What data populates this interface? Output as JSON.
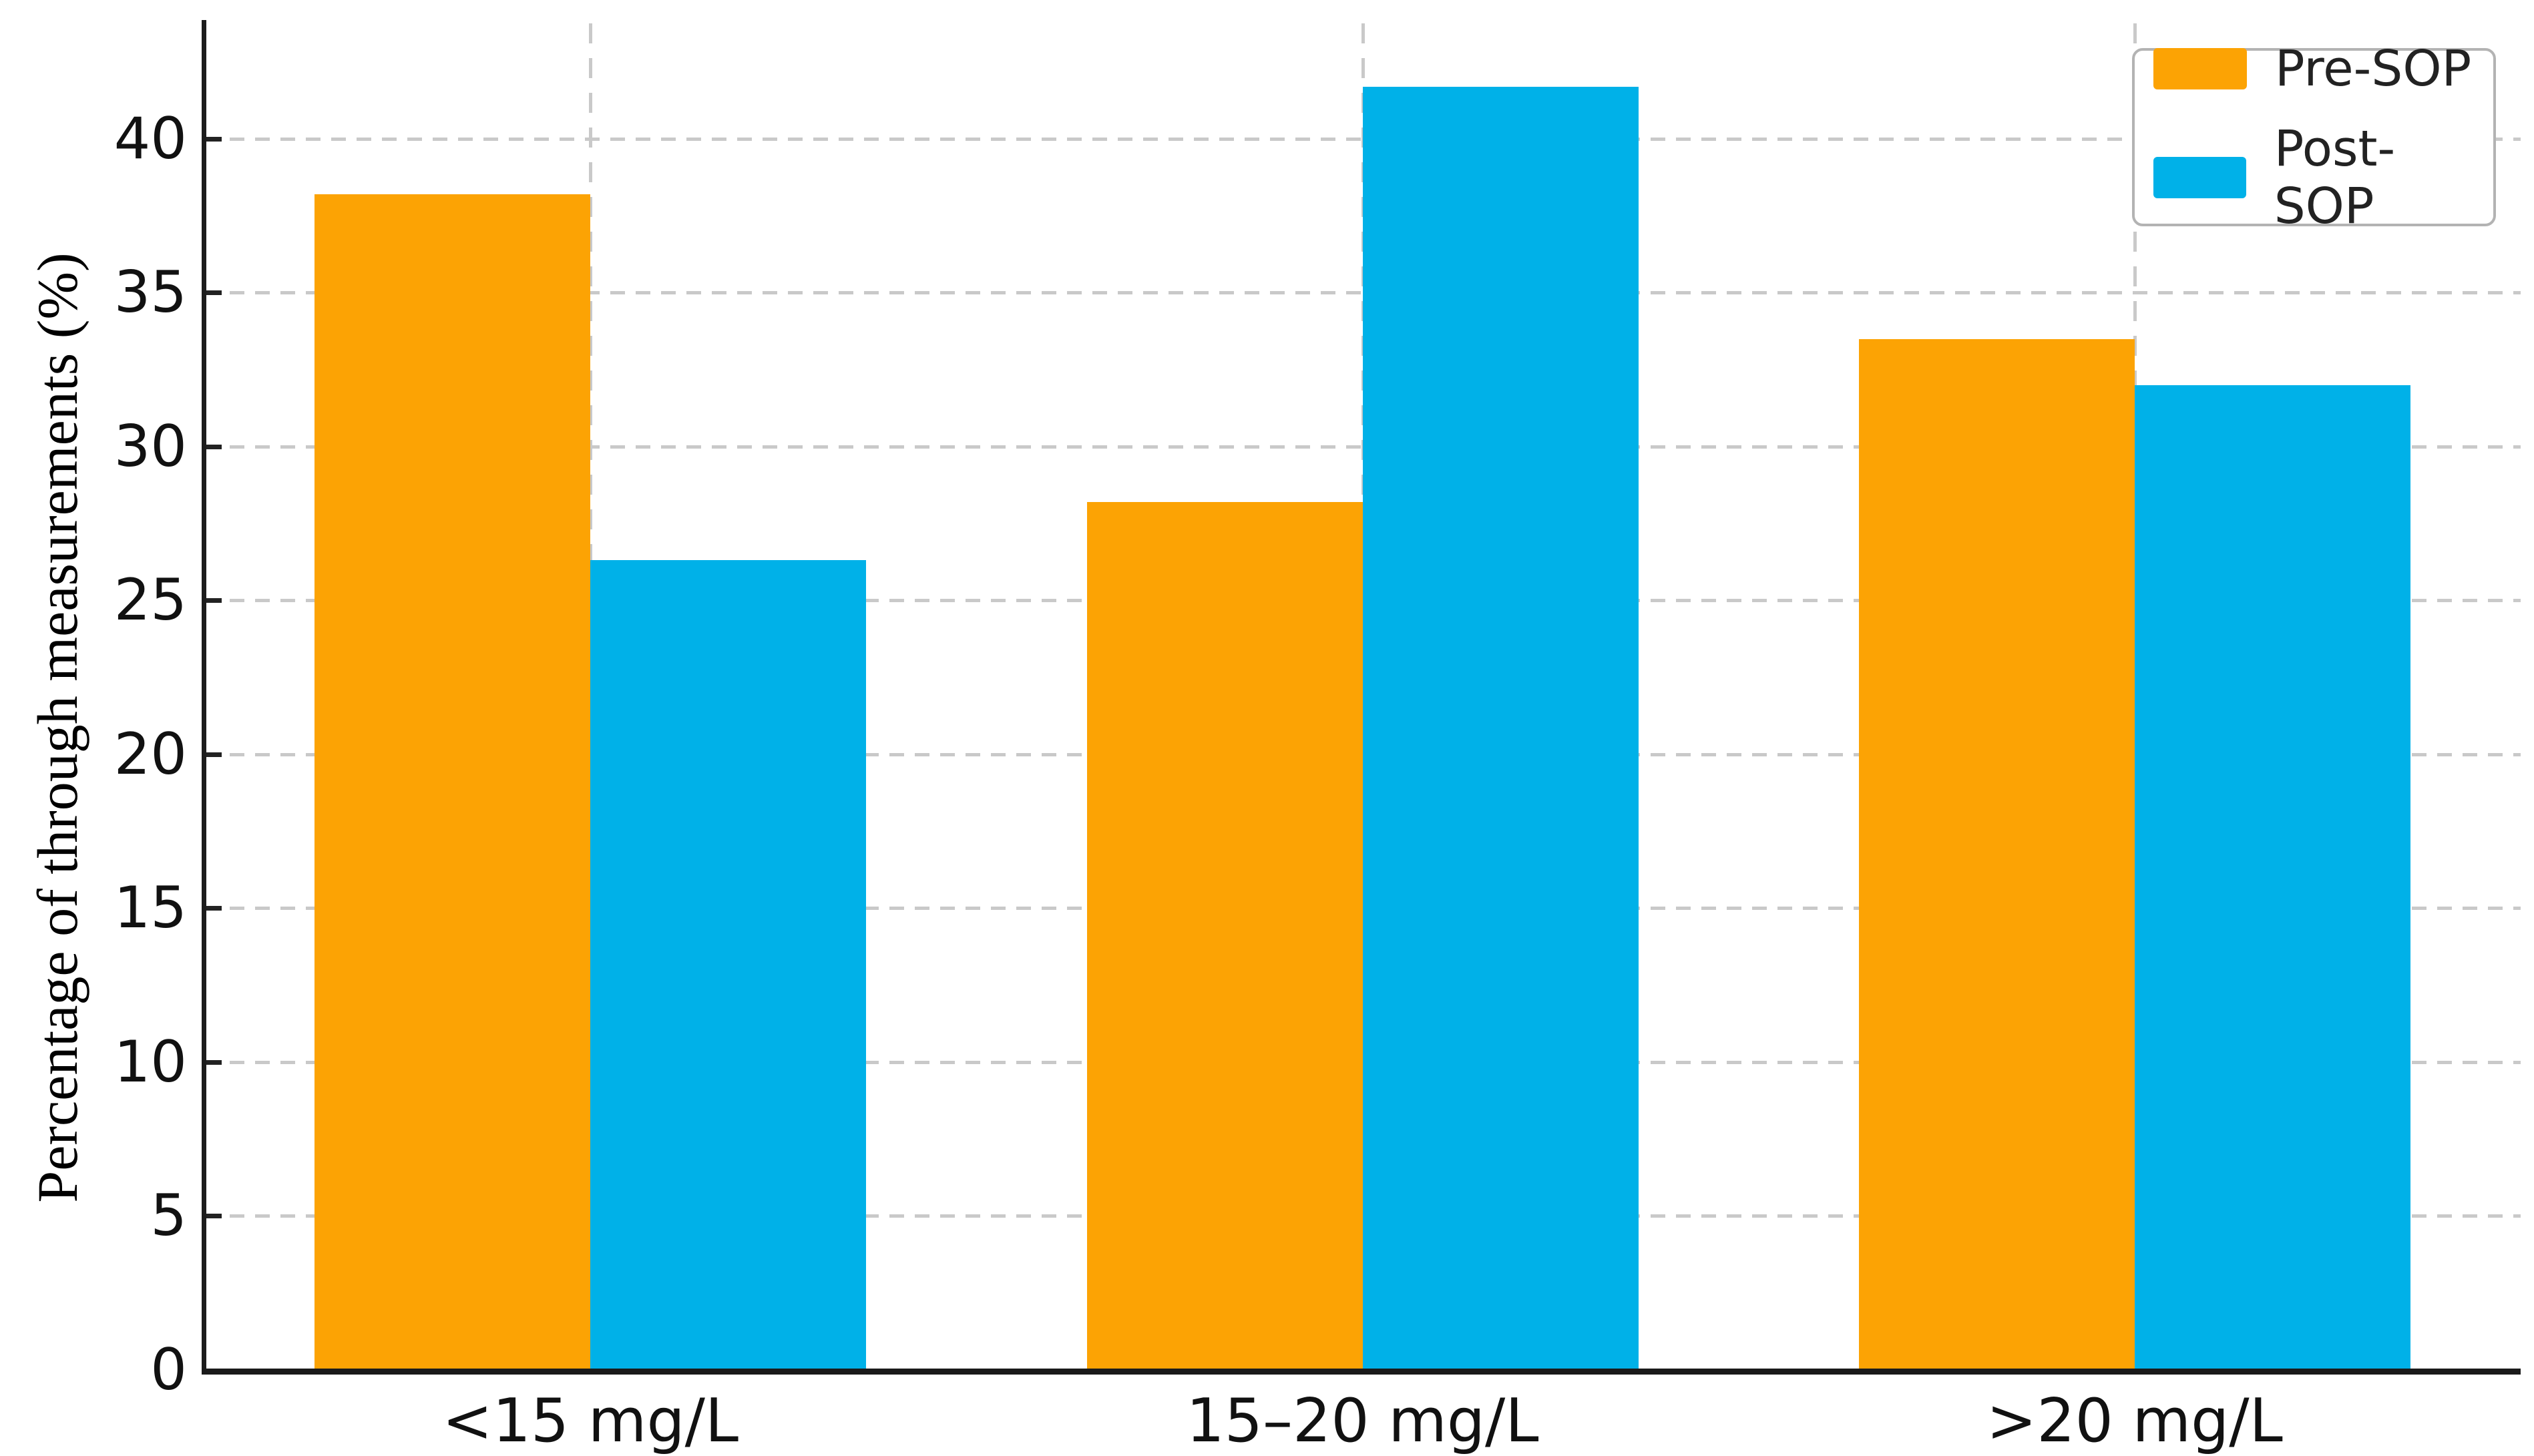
{
  "chart_data": {
    "type": "bar",
    "title": "",
    "xlabel": "",
    "ylabel": "Percentage of through measurements (%)",
    "categories": [
      "<15 mg/L",
      "15–20 mg/L",
      ">20 mg/L"
    ],
    "series": [
      {
        "name": "Pre-SOP",
        "color": "#FCA304",
        "values": [
          38.2,
          28.2,
          33.5
        ]
      },
      {
        "name": "Post-SOP",
        "color": "#00B1E8",
        "values": [
          26.3,
          41.7,
          32.0
        ]
      }
    ],
    "yticks": [
      0,
      5,
      10,
      15,
      20,
      25,
      30,
      35,
      40
    ],
    "ylim": [
      0,
      43.75
    ],
    "grid": {
      "horizontal": true,
      "vertical": true,
      "style": "dashed",
      "color": "#c9c9c9"
    },
    "legend_position": "upper right",
    "bar_gap_within_pair": 0
  }
}
